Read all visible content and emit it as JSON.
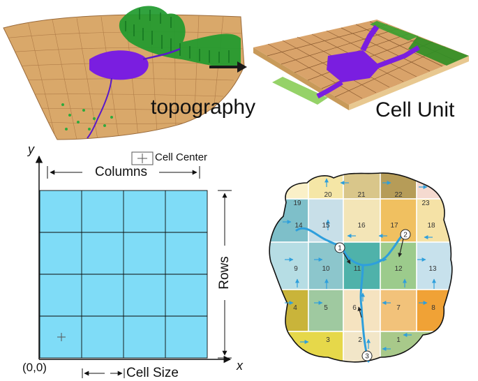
{
  "top_panel": {
    "topography_label": "topography",
    "cell_unit_label": "Cell Unit"
  },
  "grid_panel": {
    "y_axis": "y",
    "x_axis": "x",
    "origin": "(0,0)",
    "columns_label": "Columns",
    "rows_label": "Rows",
    "cell_size_label": "Cell Size",
    "legend_label": "Cell Center",
    "n_rows": 4,
    "n_cols": 4,
    "cell_color": "#7fdcf7"
  },
  "watershed_panel": {
    "subbasins": [
      {
        "id": "1",
        "fill": "#a8c98a"
      },
      {
        "id": "2",
        "fill": "#f2e6c8"
      },
      {
        "id": "3",
        "fill": "#e6d84a"
      },
      {
        "id": "4",
        "fill": "#c9b43a"
      },
      {
        "id": "5",
        "fill": "#9fc9a0"
      },
      {
        "id": "6",
        "fill": "#f5e3c0"
      },
      {
        "id": "7",
        "fill": "#f2c27a"
      },
      {
        "id": "8",
        "fill": "#f0a236"
      },
      {
        "id": "9",
        "fill": "#b6dde4"
      },
      {
        "id": "10",
        "fill": "#8cc6cc"
      },
      {
        "id": "11",
        "fill": "#4fb2aa"
      },
      {
        "id": "12",
        "fill": "#9ccb8c"
      },
      {
        "id": "13",
        "fill": "#c7e1ec"
      },
      {
        "id": "14",
        "fill": "#7ebfc9"
      },
      {
        "id": "15",
        "fill": "#c8dfe8"
      },
      {
        "id": "16",
        "fill": "#f3e5b7"
      },
      {
        "id": "17",
        "fill": "#f0c060"
      },
      {
        "id": "18",
        "fill": "#f5e2a6"
      },
      {
        "id": "19",
        "fill": "#faf0c8"
      },
      {
        "id": "20",
        "fill": "#f5e6a6"
      },
      {
        "id": "21",
        "fill": "#d9c68a"
      },
      {
        "id": "22",
        "fill": "#b69c58"
      },
      {
        "id": "23",
        "fill": "#f5dad0"
      }
    ],
    "outlets": [
      "1",
      "2",
      "3"
    ],
    "stream_color": "#2e9fdc",
    "arrow_color": "#2e9fdc"
  }
}
